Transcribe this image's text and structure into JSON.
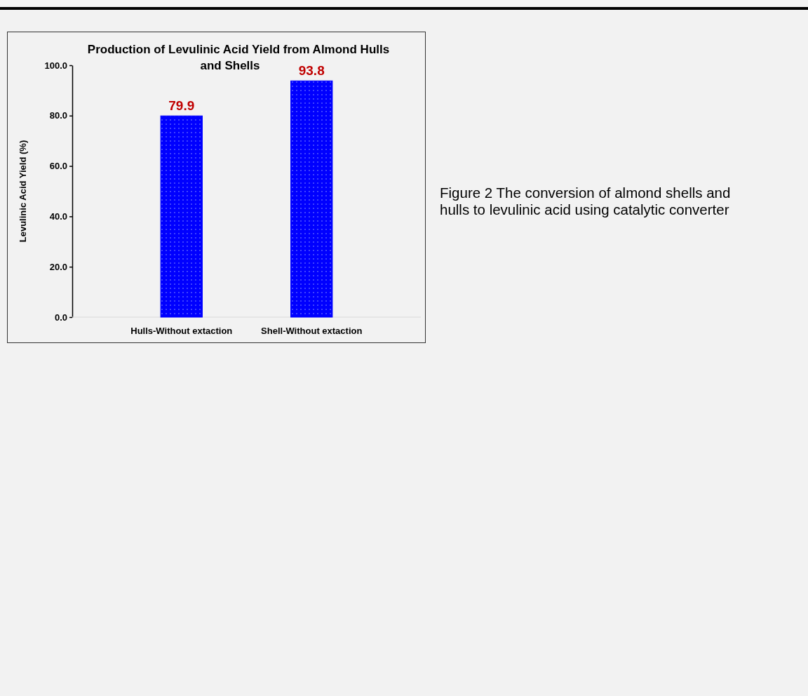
{
  "chart_data": {
    "type": "bar",
    "title": "Production of Levulinic Acid Yield from Almond Hulls and Shells",
    "ylabel": "Levulinic Acid Yield (%)",
    "categories": [
      "Hulls-Without extaction",
      "Shell-Without extaction"
    ],
    "values": [
      79.9,
      93.8
    ],
    "color": "#0000ff",
    "data_labels": true,
    "ylim": [
      0,
      100
    ],
    "yticks": [
      {
        "value": 0,
        "label": "0.0"
      },
      {
        "value": 20,
        "label": "20.0"
      },
      {
        "value": 40,
        "label": "40.0"
      },
      {
        "value": 60,
        "label": "60.0"
      },
      {
        "value": 80,
        "label": "80.0"
      },
      {
        "value": 100,
        "label": "100.0"
      }
    ],
    "grid": false,
    "annotations": [
      "Figure 2 The conversion of almond shells and hulls to levulinic acid using catalytic converter"
    ]
  }
}
